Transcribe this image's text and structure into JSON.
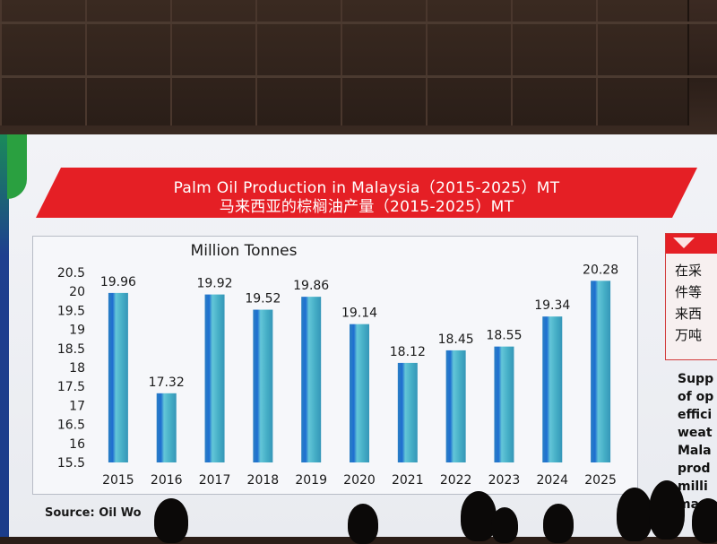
{
  "slide": {
    "title_en": "Palm Oil Production in Malaysia（2015-2025）MT",
    "title_zh": "马来西亚的棕榈油产量（2015-2025）MT",
    "source": "Source: Oil Wo",
    "side_cn_lines": [
      "在采",
      "件等",
      "来西",
      "万吨"
    ],
    "side_en_lines": [
      "Supp",
      "of op",
      "effici",
      "weat",
      "Mala",
      "prod",
      "milli",
      "mark"
    ]
  },
  "colors": {
    "banner": "#e51f25",
    "bar": "#3fa3c6",
    "bar_stripe": "#1f6fd1"
  },
  "chart_data": {
    "type": "bar",
    "title": "Million Tonnes",
    "xlabel": "",
    "ylabel": "",
    "categories": [
      "2015",
      "2016",
      "2017",
      "2018",
      "2019",
      "2020",
      "2021",
      "2022",
      "2023",
      "2024",
      "2025"
    ],
    "values": [
      19.96,
      17.32,
      19.92,
      19.52,
      19.86,
      19.14,
      18.12,
      18.45,
      18.55,
      19.34,
      20.28
    ],
    "data_labels": [
      "19.96",
      "17.32",
      "19.92",
      "19.52",
      "19.86",
      "19.14",
      "18.12",
      "18.45",
      "18.55",
      "19.34",
      "20.28"
    ],
    "yticks": [
      "15.5",
      "16",
      "16.5",
      "17",
      "17.5",
      "18",
      "18.5",
      "19",
      "19.5",
      "20",
      "20.5"
    ],
    "ylim": [
      15.5,
      20.5
    ],
    "grid": false,
    "legend": "none"
  }
}
